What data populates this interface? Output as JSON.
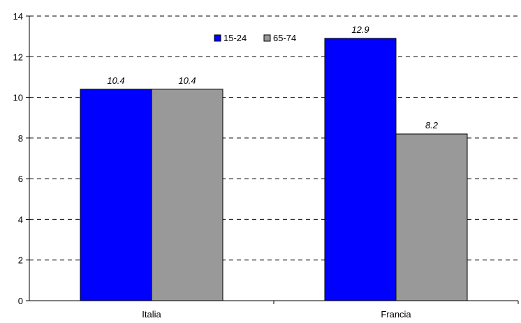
{
  "chart_data": {
    "type": "bar",
    "categories": [
      "Italia",
      "Francia"
    ],
    "series": [
      {
        "name": "15-24",
        "values": [
          10.4,
          12.9
        ],
        "color": "#0000ff"
      },
      {
        "name": "65-74",
        "values": [
          10.4,
          8.2
        ],
        "color": "#999999"
      }
    ],
    "data_labels": [
      [
        "10.4",
        "12.9"
      ],
      [
        "10.4",
        "8.2"
      ]
    ],
    "ylim": [
      0,
      14
    ],
    "yticks": [
      0,
      2,
      4,
      6,
      8,
      10,
      12,
      14
    ],
    "grid": "dashed horizontal",
    "legend_position": "top-center",
    "title": "",
    "xlabel": "",
    "ylabel": ""
  }
}
